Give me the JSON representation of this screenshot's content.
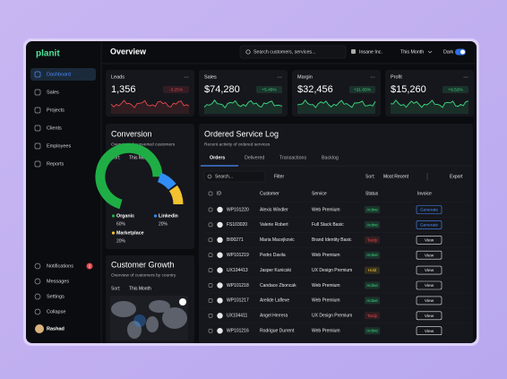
{
  "sidebar": {
    "logo": "planit",
    "menu": [
      "Dashboard",
      "Sales",
      "Projects",
      "Clients",
      "Employees",
      "Reports"
    ],
    "bottom": [
      "Notifications",
      "Messages",
      "Settings",
      "Collapse"
    ],
    "badge": "2",
    "user": "Rashad"
  },
  "header": {
    "title": "Overview",
    "search": "Search customers, services...",
    "org": "Insane Inc.",
    "period": "This Month",
    "theme": "Dark"
  },
  "kpis": [
    {
      "label": "Leads",
      "value": "1,356",
      "change": "-3.25%",
      "color": "#e5484d"
    },
    {
      "label": "Sales",
      "value": "$74,280",
      "change": "+5.45%",
      "color": "#3ddc84"
    },
    {
      "label": "Margin",
      "value": "$32,456",
      "change": "+21.65%",
      "color": "#3ddc84"
    },
    {
      "label": "Profit",
      "value": "$15,260",
      "change": "+9.52%",
      "color": "#3ddc84"
    }
  ],
  "conversion": {
    "title": "Conversion",
    "subtitle": "Overview of converted customers",
    "sort_label": "Sort:",
    "sort": "This Month",
    "segments": [
      {
        "name": "Organic",
        "value": 60,
        "label": "60%",
        "color": "#1fae45"
      },
      {
        "name": "Linkedin",
        "value": 20,
        "label": "20%",
        "color": "#2f8df5"
      },
      {
        "name": "Marketplace",
        "value": 20,
        "label": "20%",
        "color": "#f2c230"
      }
    ]
  },
  "growth": {
    "title": "Customer Growth",
    "subtitle": "Overview of customers by country",
    "sort_label": "Sort:",
    "sort": "This Month"
  },
  "orders": {
    "title": "Ordered Service Log",
    "subtitle": "Recent activity of ordered services",
    "tabs": [
      "Orders",
      "Delivered",
      "Transactions",
      "Backlog"
    ],
    "search": "Search...",
    "filter": "Filter",
    "sort_label": "Sort:",
    "sort": "Most Recent",
    "export": "Export",
    "columns": [
      "ID",
      "Customer",
      "Service",
      "Status",
      "Invoice"
    ],
    "rows": [
      {
        "id": "WP101220",
        "customer": "Alexis Windler",
        "service": "Web Premium",
        "status": "Active",
        "status_color": "#3ddc84",
        "invoice": "Generate",
        "invoice_color": "#4a8cff"
      },
      {
        "id": "FS103020",
        "customer": "Valerie Robert",
        "service": "Full Stack Basic",
        "status": "Active",
        "status_color": "#3ddc84",
        "invoice": "Generate",
        "invoice_color": "#4a8cff"
      },
      {
        "id": "BI00271",
        "customer": "Maria Macejkovic",
        "service": "Brand Identity Basic",
        "status": "Tardy",
        "status_color": "#e5484d",
        "invoice": "View",
        "invoice_color": "#e8e8ea"
      },
      {
        "id": "WP101219",
        "customer": "Pedro Davila",
        "service": "Web Premium",
        "status": "Active",
        "status_color": "#3ddc84",
        "invoice": "View",
        "invoice_color": "#e8e8ea"
      },
      {
        "id": "UX104413",
        "customer": "Jasper Kunicski",
        "service": "UX Design Premium",
        "status": "Hold",
        "status_color": "#f2c230",
        "invoice": "View",
        "invoice_color": "#e8e8ea"
      },
      {
        "id": "WP101218",
        "customer": "Candace Zboncak",
        "service": "Web Premium",
        "status": "Active",
        "status_color": "#3ddc84",
        "invoice": "View",
        "invoice_color": "#e8e8ea"
      },
      {
        "id": "WP101217",
        "customer": "Arelide Lafleve",
        "service": "Web Premium",
        "status": "Active",
        "status_color": "#3ddc84",
        "invoice": "View",
        "invoice_color": "#e8e8ea"
      },
      {
        "id": "UX104411",
        "customer": "Angel Herrera",
        "service": "UX Design Premium",
        "status": "Tardy",
        "status_color": "#e5484d",
        "invoice": "View",
        "invoice_color": "#e8e8ea"
      },
      {
        "id": "WP101216",
        "customer": "Rodrigue Durrent",
        "service": "Web Premium",
        "status": "Active",
        "status_color": "#3ddc84",
        "invoice": "View",
        "invoice_color": "#e8e8ea"
      }
    ]
  }
}
